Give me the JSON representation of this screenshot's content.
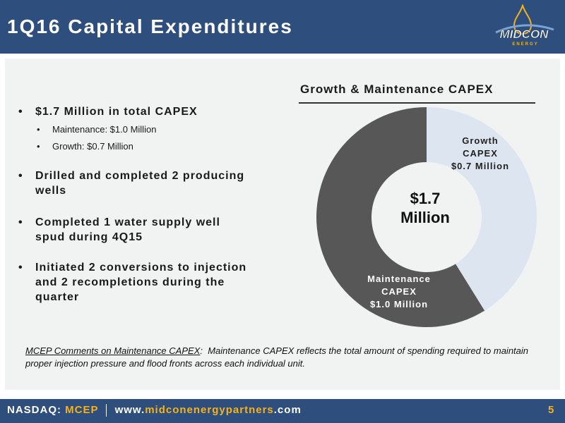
{
  "header": {
    "title": "1Q16 Capital Expenditures",
    "logo_text_main": "MIDCON",
    "logo_text_sub": "ENERGY",
    "accent_color": "#f5b21b"
  },
  "bullets": [
    {
      "text": "$1.7 Million in total CAPEX",
      "subs": [
        "Maintenance: $1.0 Million",
        "Growth: $0.7 Million"
      ]
    },
    {
      "lines": [
        "Drilled and completed 2 producing",
        "wells"
      ]
    },
    {
      "lines": [
        "Completed 1 water supply well",
        "spud during 4Q15"
      ]
    },
    {
      "lines": [
        "Initiated 2 conversions to injection",
        "and 2 recompletions during the",
        "quarter"
      ]
    }
  ],
  "chart_data": {
    "type": "pie",
    "donut": true,
    "title": "Growth & Maintenance CAPEX",
    "center_label_line1": "$1.7",
    "center_label_line2": "Million",
    "slices": [
      {
        "name_line1": "Growth",
        "name_line2": "CAPEX",
        "value_label": "$0.7 Million",
        "value": 0.7,
        "color": "#dde5f0"
      },
      {
        "name_line1": "Maintenance",
        "name_line2": "CAPEX",
        "value_label": "$1.0 Million",
        "value": 1.0,
        "color": "#575757"
      }
    ]
  },
  "comment": {
    "label": "MCEP Comments on Maintenance CAPEX",
    "text": "Maintenance CAPEX reflects the total amount of spending required to maintain proper injection pressure and flood fronts across each individual unit."
  },
  "footer": {
    "exchange_label": "NASDAQ:",
    "ticker": "MCEP",
    "url_prefix": "www.",
    "url_main": "midconenergypartners",
    "url_suffix": ".com",
    "page_number": "5"
  }
}
